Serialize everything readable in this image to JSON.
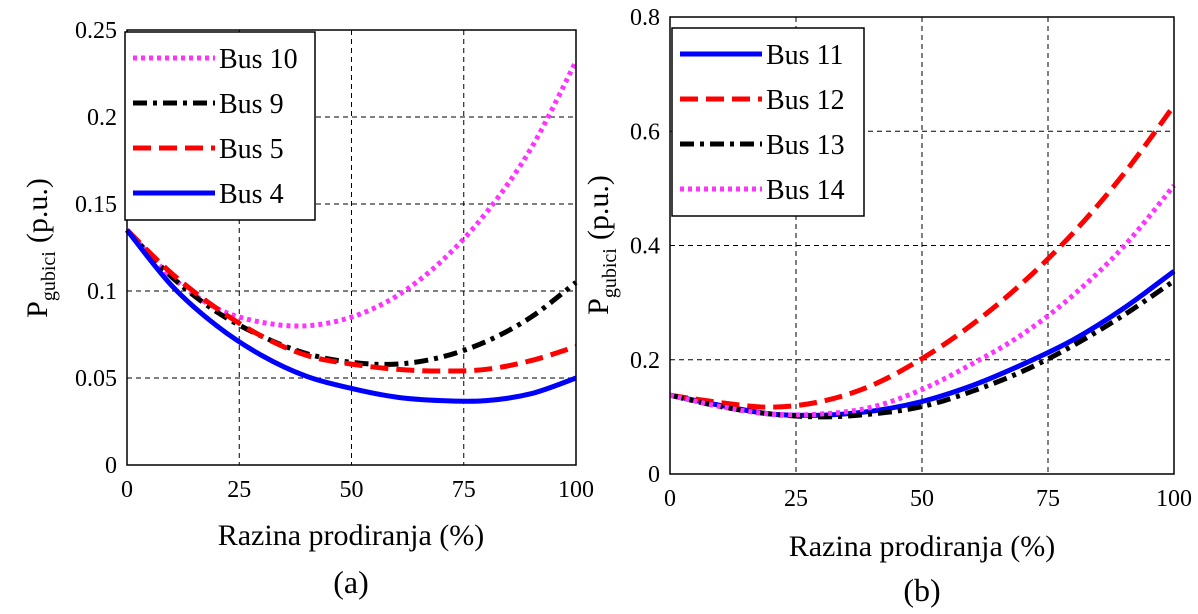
{
  "chart_data": [
    {
      "type": "line",
      "caption": "(a)",
      "xlabel": "Razina prodiranja (%)",
      "ylabel_main": "P",
      "ylabel_sub": "gubici",
      "ylabel_unit": "(p.u.)",
      "xlim": [
        0,
        100
      ],
      "ylim": [
        0,
        0.25
      ],
      "xticks": [
        "0",
        "25",
        "50",
        "75",
        "100"
      ],
      "yticks": [
        "0",
        "0.05",
        "0.1",
        "0.15",
        "0.2",
        "0.25"
      ],
      "grid": true,
      "legend_position": "top-left",
      "x": [
        0,
        10,
        20,
        30,
        40,
        50,
        60,
        70,
        80,
        90,
        100
      ],
      "series": [
        {
          "name": "Bus 10",
          "color": "#ff33ff",
          "style": "dotted",
          "values": [
            0.135,
            0.108,
            0.09,
            0.082,
            0.08,
            0.085,
            0.097,
            0.117,
            0.145,
            0.182,
            0.232
          ]
        },
        {
          "name": "Bus 9",
          "color": "#000000",
          "style": "dashdot",
          "values": [
            0.135,
            0.108,
            0.088,
            0.074,
            0.064,
            0.059,
            0.058,
            0.062,
            0.071,
            0.085,
            0.105
          ]
        },
        {
          "name": "Bus 5",
          "color": "#ff0000",
          "style": "dashed",
          "values": [
            0.135,
            0.11,
            0.09,
            0.074,
            0.063,
            0.058,
            0.055,
            0.054,
            0.055,
            0.06,
            0.068
          ]
        },
        {
          "name": "Bus 4",
          "color": "#0000ff",
          "style": "solid",
          "values": [
            0.135,
            0.103,
            0.08,
            0.063,
            0.051,
            0.044,
            0.039,
            0.037,
            0.037,
            0.041,
            0.05
          ]
        }
      ]
    },
    {
      "type": "line",
      "caption": "(b)",
      "xlabel": "Razina prodiranja (%)",
      "ylabel_main": "P",
      "ylabel_sub": "gubici",
      "ylabel_unit": "(p.u.)",
      "xlim": [
        0,
        100
      ],
      "ylim": [
        0,
        0.8
      ],
      "xticks": [
        "0",
        "25",
        "50",
        "75",
        "100"
      ],
      "yticks": [
        "0",
        "0.2",
        "0.4",
        "0.6",
        "0.8"
      ],
      "grid": true,
      "legend_position": "top-left",
      "x": [
        0,
        10,
        20,
        30,
        40,
        50,
        60,
        70,
        80,
        90,
        100
      ],
      "series": [
        {
          "name": "Bus 11",
          "color": "#0000ff",
          "style": "solid",
          "values": [
            0.138,
            0.12,
            0.105,
            0.103,
            0.11,
            0.127,
            0.155,
            0.192,
            0.235,
            0.29,
            0.355
          ]
        },
        {
          "name": "Bus 12",
          "color": "#ff0000",
          "style": "dashed",
          "values": [
            0.138,
            0.125,
            0.117,
            0.127,
            0.155,
            0.202,
            0.262,
            0.335,
            0.422,
            0.525,
            0.645
          ]
        },
        {
          "name": "Bus 13",
          "color": "#000000",
          "style": "dashdot",
          "values": [
            0.138,
            0.118,
            0.105,
            0.1,
            0.105,
            0.118,
            0.145,
            0.18,
            0.225,
            0.278,
            0.338
          ]
        },
        {
          "name": "Bus 14",
          "color": "#ff33ff",
          "style": "dotted",
          "values": [
            0.138,
            0.118,
            0.105,
            0.105,
            0.117,
            0.148,
            0.193,
            0.245,
            0.313,
            0.398,
            0.505
          ]
        }
      ]
    }
  ]
}
